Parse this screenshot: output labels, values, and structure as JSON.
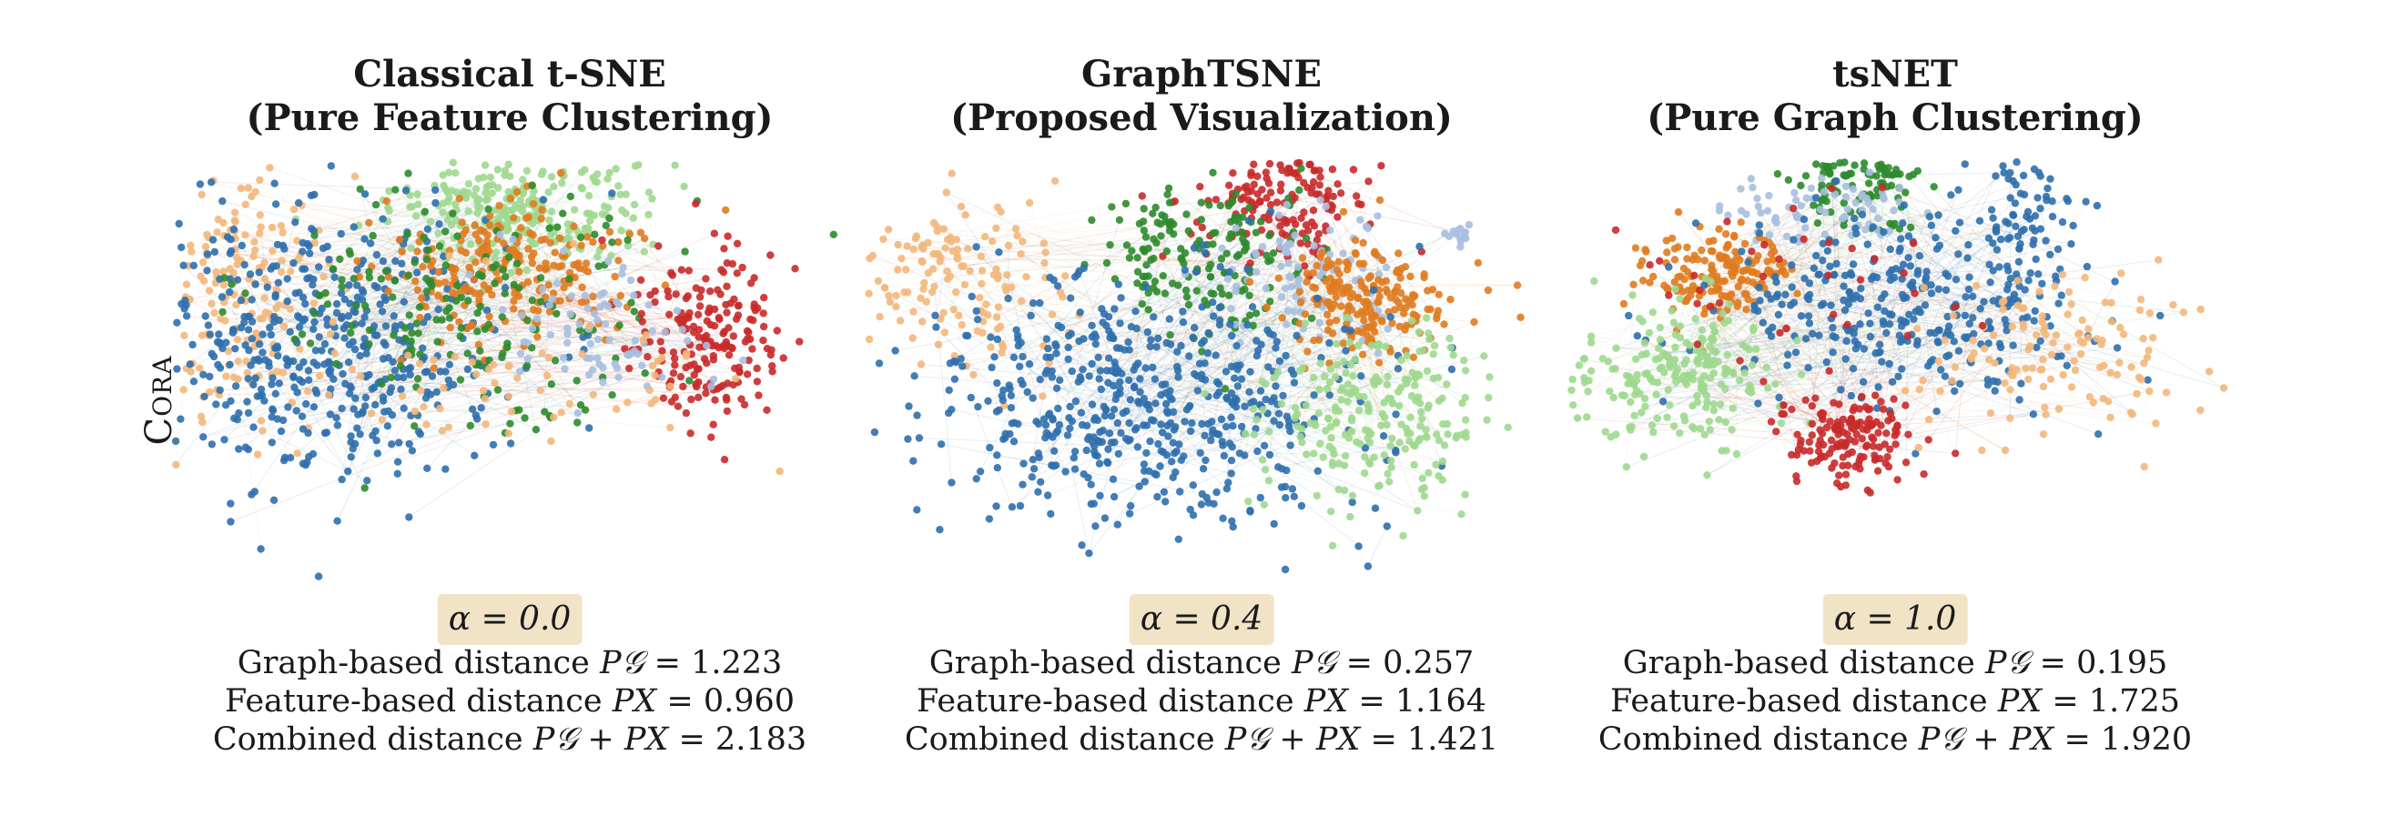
{
  "figure": {
    "row_label": "Cora",
    "palette": {
      "blue": "#2f6fad",
      "orange": "#e07b1f",
      "light_orange": "#f3b77b",
      "green": "#2e8b2e",
      "light_green": "#9fd88f",
      "red": "#c92a2a",
      "light_blue": "#a9bfdf"
    },
    "alpha_badge_color": "#f1e3c6",
    "panels": [
      {
        "title_line1": "Classical t-SNE",
        "title_line2": "(Pure Feature Clustering)",
        "alpha": "α = 0.0",
        "metrics": [
          {
            "label": "Graph-based distance",
            "symbol": "P𝒢",
            "equals": "=",
            "value": "1.223"
          },
          {
            "label": "Feature-based distance",
            "symbol": "PX",
            "equals": "=",
            "value": "0.960"
          },
          {
            "label": "Combined distance",
            "symbol": "P𝒢 + PX",
            "equals": "=",
            "value": "2.183"
          }
        ]
      },
      {
        "title_line1": "GraphTSNE",
        "title_line2": "(Proposed Visualization)",
        "alpha": "α = 0.4",
        "metrics": [
          {
            "label": "Graph-based distance",
            "symbol": "P𝒢",
            "equals": "=",
            "value": "0.257"
          },
          {
            "label": "Feature-based distance",
            "symbol": "PX",
            "equals": "=",
            "value": "1.164"
          },
          {
            "label": "Combined distance",
            "symbol": "P𝒢 + PX",
            "equals": "=",
            "value": "1.421"
          }
        ]
      },
      {
        "title_line1": "tsNET",
        "title_line2": "(Pure Graph Clustering)",
        "alpha": "α = 1.0",
        "metrics": [
          {
            "label": "Graph-based distance",
            "symbol": "P𝒢",
            "equals": "=",
            "value": "0.195"
          },
          {
            "label": "Feature-based distance",
            "symbol": "PX",
            "equals": "=",
            "value": "1.725"
          },
          {
            "label": "Combined distance",
            "symbol": "P𝒢 + PX",
            "equals": "=",
            "value": "1.920"
          }
        ]
      }
    ]
  }
}
